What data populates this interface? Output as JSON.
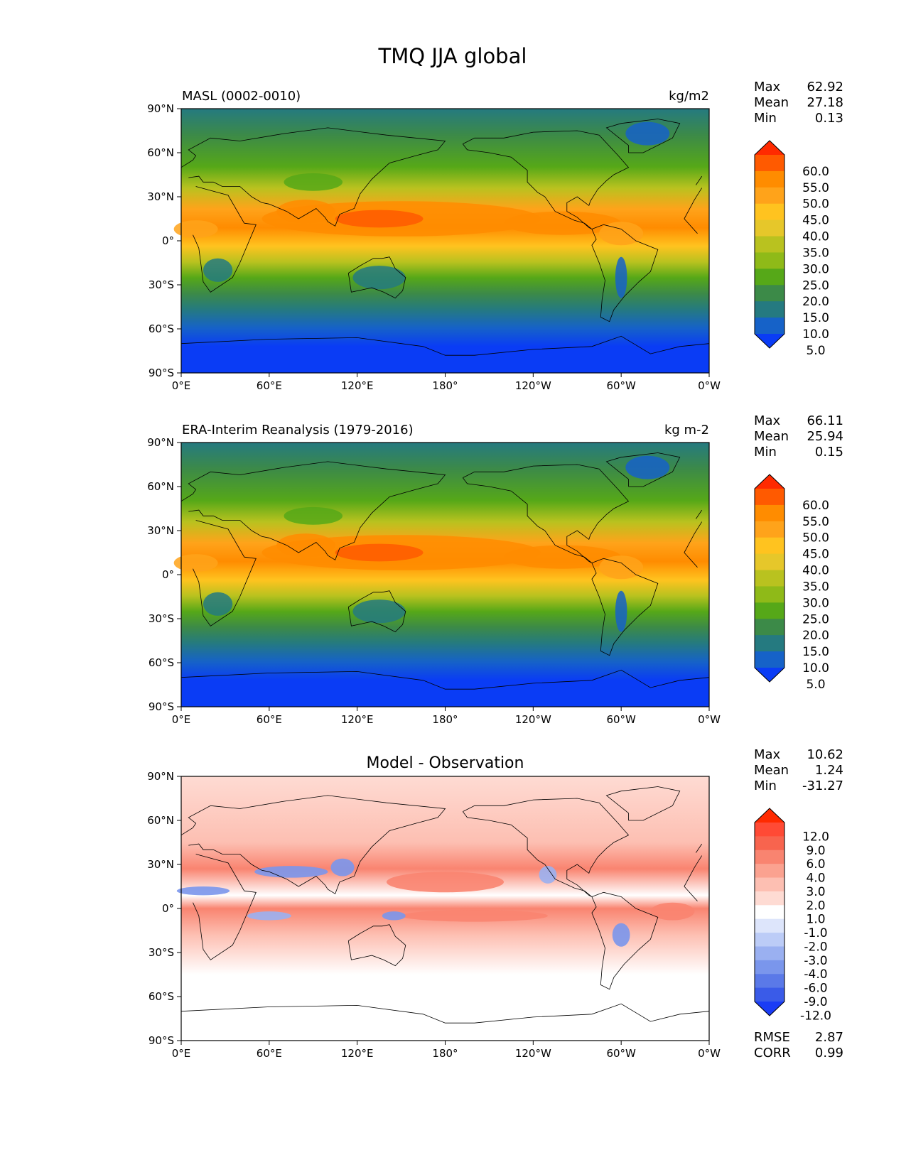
{
  "figure": {
    "title": "TMQ JJA global"
  },
  "chart_data": [
    {
      "type": "heatmap",
      "title": "MASL (0002-0010)",
      "units": "kg/m2",
      "stats": {
        "max_label": "Max",
        "max": "62.92",
        "mean_label": "Mean",
        "mean": "27.18",
        "min_label": "Min",
        "min": "0.13"
      },
      "x_ticks": [
        "0°E",
        "60°E",
        "120°E",
        "180°",
        "120°W",
        "60°W",
        "0°W"
      ],
      "y_ticks": [
        "90°N",
        "60°N",
        "30°N",
        "0°",
        "30°S",
        "60°S",
        "90°S"
      ],
      "xlim": [
        0,
        360
      ],
      "ylim": [
        -90,
        90
      ],
      "colorbar": {
        "levels": [
          "60.0",
          "55.0",
          "50.0",
          "45.0",
          "40.0",
          "35.0",
          "30.0",
          "25.0",
          "20.0",
          "15.0",
          "10.0",
          "5.0"
        ],
        "colors": [
          "#ff2a00",
          "#ff5a00",
          "#ff8c00",
          "#ffa31a",
          "#ffc31f",
          "#e6c72a",
          "#b9c21f",
          "#8fba18",
          "#56a818",
          "#3c8a48",
          "#257a80",
          "#1662c8",
          "#0a3cf5"
        ],
        "extend": "both"
      }
    },
    {
      "type": "heatmap",
      "title": "ERA-Interim Reanalysis (1979-2016)",
      "units": "kg m-2",
      "stats": {
        "max_label": "Max",
        "max": "66.11",
        "mean_label": "Mean",
        "mean": "25.94",
        "min_label": "Min",
        "min": "0.15"
      },
      "x_ticks": [
        "0°E",
        "60°E",
        "120°E",
        "180°",
        "120°W",
        "60°W",
        "0°W"
      ],
      "y_ticks": [
        "90°N",
        "60°N",
        "30°N",
        "0°",
        "30°S",
        "60°S",
        "90°S"
      ],
      "xlim": [
        0,
        360
      ],
      "ylim": [
        -90,
        90
      ],
      "colorbar": {
        "levels": [
          "60.0",
          "55.0",
          "50.0",
          "45.0",
          "40.0",
          "35.0",
          "30.0",
          "25.0",
          "20.0",
          "15.0",
          "10.0",
          "5.0"
        ],
        "colors": [
          "#ff2a00",
          "#ff5a00",
          "#ff8c00",
          "#ffa31a",
          "#ffc31f",
          "#e6c72a",
          "#b9c21f",
          "#8fba18",
          "#56a818",
          "#3c8a48",
          "#257a80",
          "#1662c8",
          "#0a3cf5"
        ],
        "extend": "both"
      }
    },
    {
      "type": "heatmap",
      "title": "Model - Observation",
      "units": "",
      "stats": {
        "max_label": "Max",
        "max": "10.62",
        "mean_label": "Mean",
        "mean": "1.24",
        "min_label": "Min",
        "min": "-31.27"
      },
      "extra_stats": {
        "rmse_label": "RMSE",
        "rmse": "2.87",
        "corr_label": "CORR",
        "corr": "0.99"
      },
      "x_ticks": [
        "0°E",
        "60°E",
        "120°E",
        "180°",
        "120°W",
        "60°W",
        "0°W"
      ],
      "y_ticks": [
        "90°N",
        "60°N",
        "30°N",
        "0°",
        "30°S",
        "60°S",
        "90°S"
      ],
      "xlim": [
        0,
        360
      ],
      "ylim": [
        -90,
        90
      ],
      "colorbar": {
        "levels": [
          "12.0",
          "9.0",
          "6.0",
          "4.0",
          "3.0",
          "2.0",
          "1.0",
          "-1.0",
          "-2.0",
          "-3.0",
          "-4.0",
          "-6.0",
          "-9.0",
          "-12.0"
        ],
        "colors": [
          "#ff2a00",
          "#ff4a35",
          "#f8644e",
          "#f98470",
          "#fba290",
          "#fdbfb2",
          "#fedbd3",
          "#ffffff",
          "#dde5fb",
          "#bcccf7",
          "#9ab0f1",
          "#7a96ec",
          "#5a79e8",
          "#3a5be8",
          "#1a3cf5"
        ],
        "extend": "both"
      }
    }
  ]
}
